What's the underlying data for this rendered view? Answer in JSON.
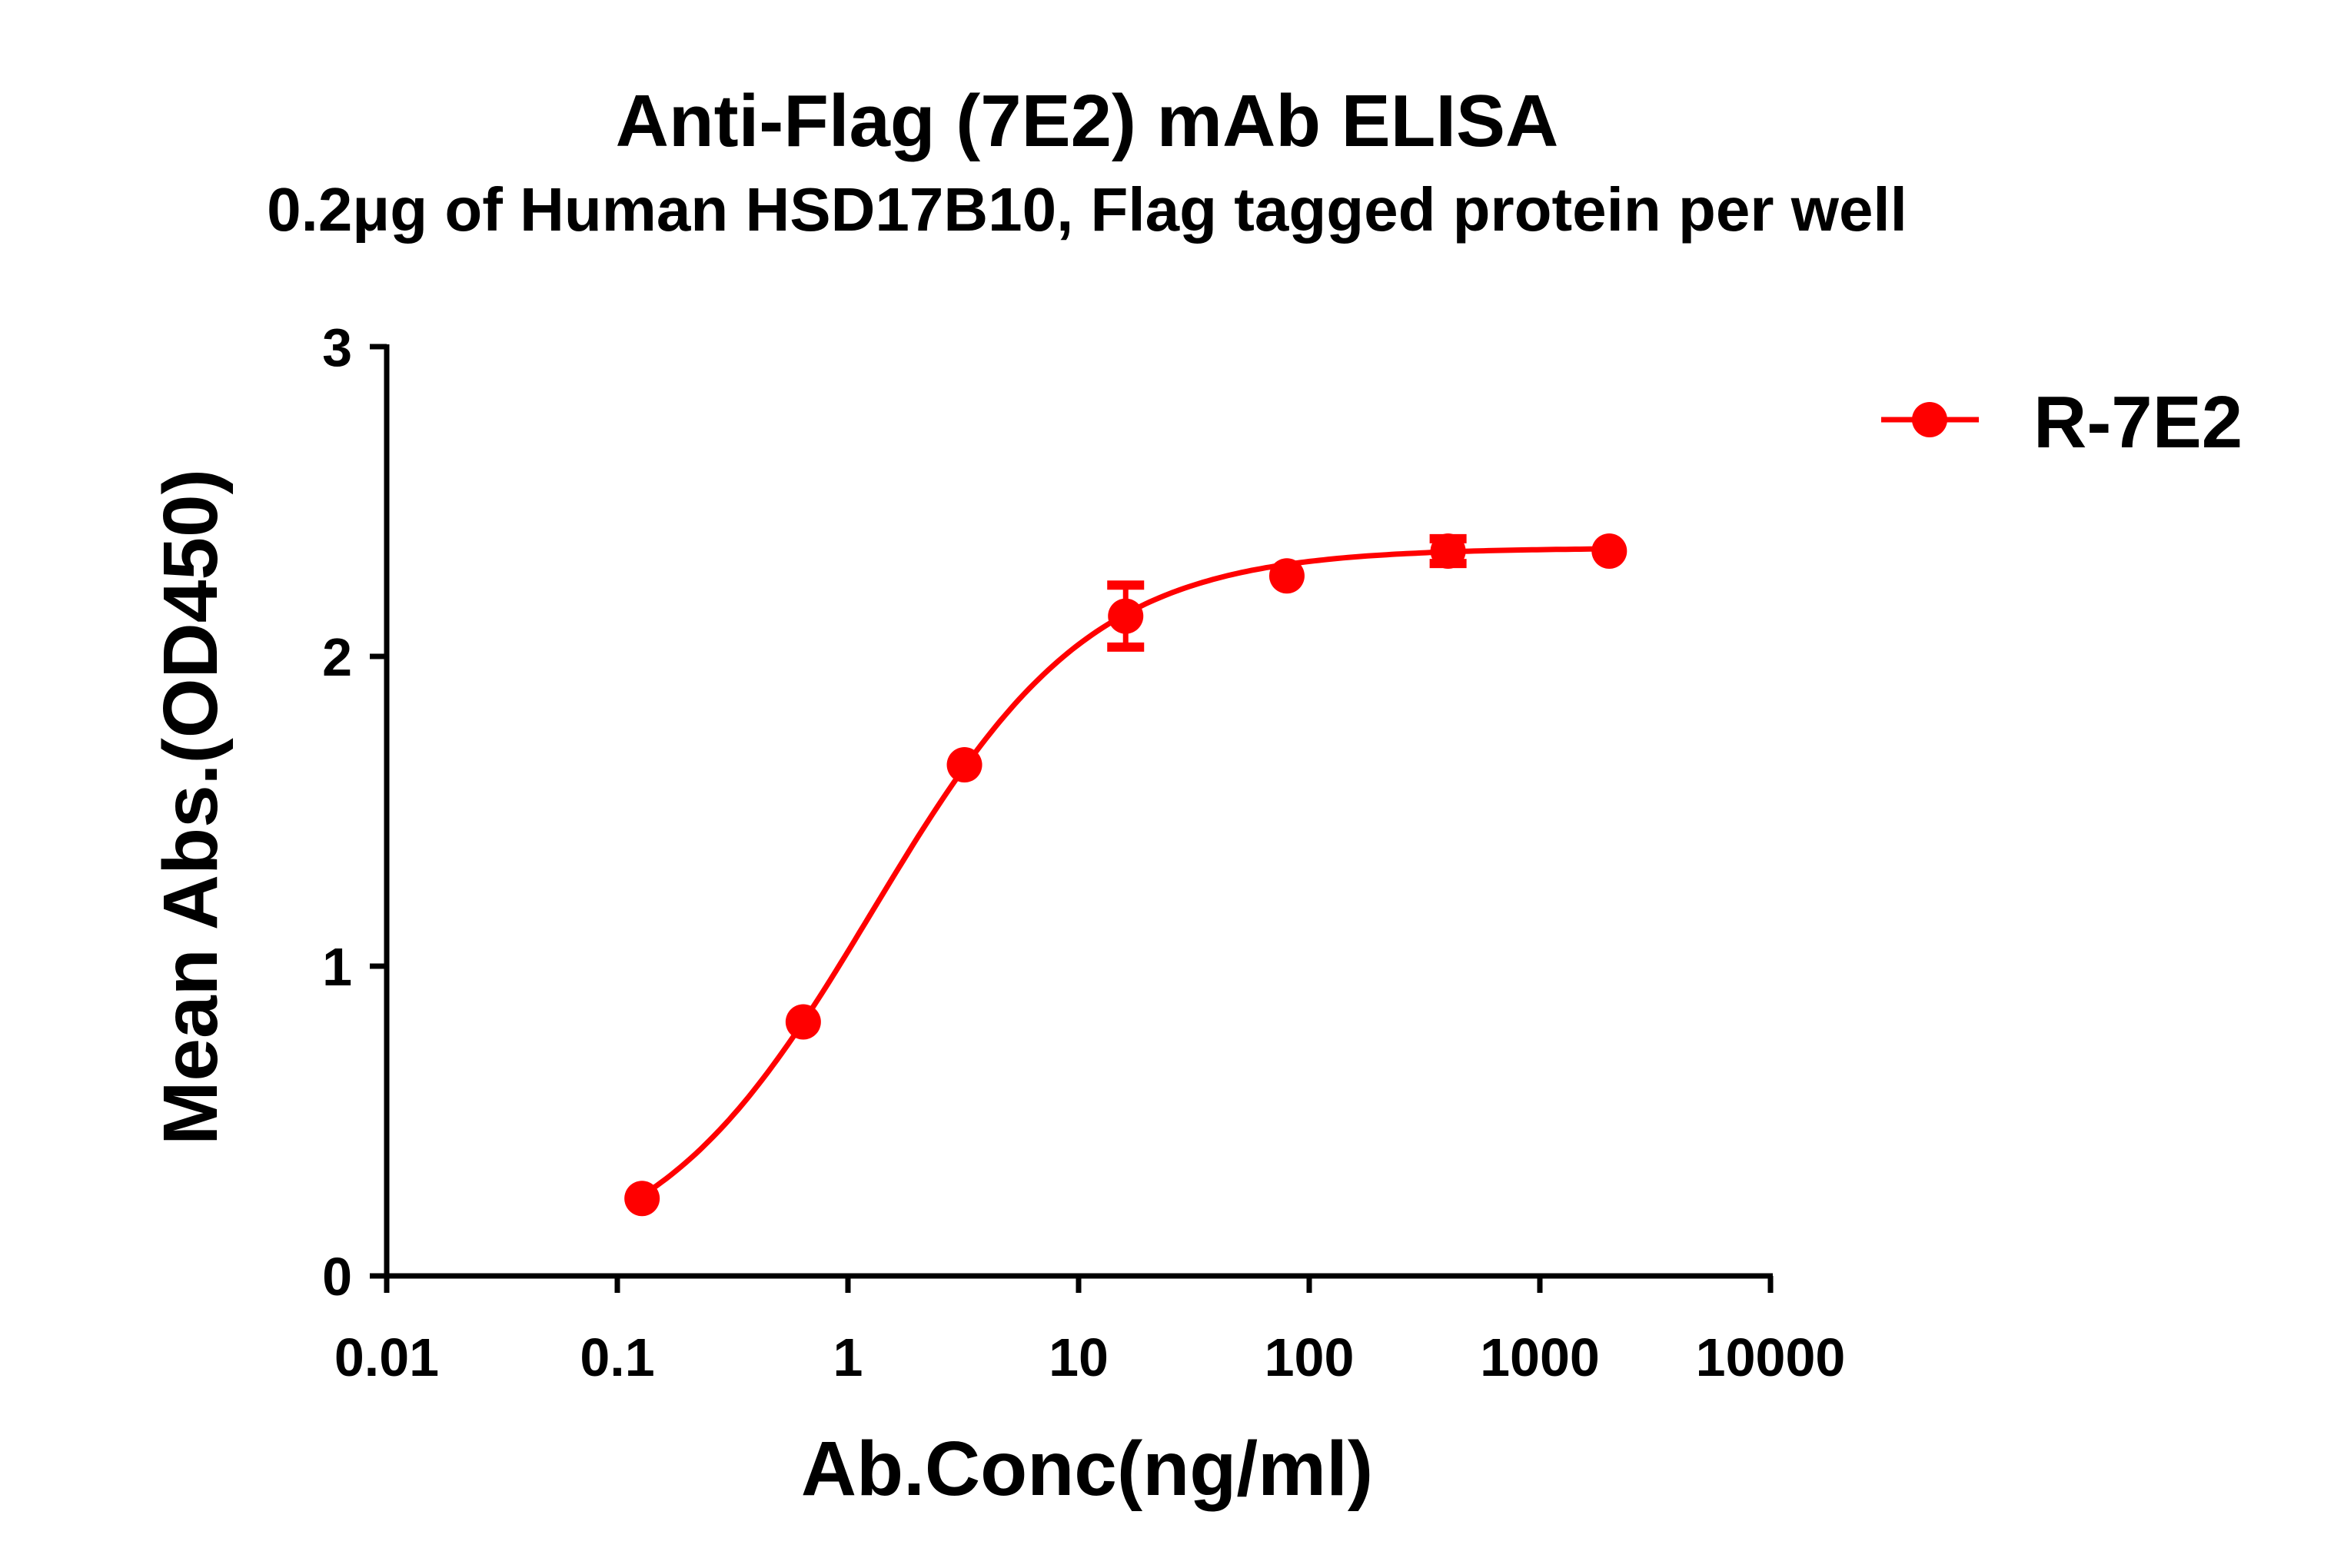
{
  "chart_data": {
    "type": "scatter",
    "title": "Anti-Flag (7E2) mAb ELISA",
    "subtitle": "0.2μg of Human HSD17B10, Flag tagged protein per well",
    "xlabel": "Ab.Conc(ng/ml)",
    "ylabel": "Mean Abs.(OD450)",
    "xscale": "log",
    "xlim": [
      0.01,
      10000
    ],
    "ylim": [
      0,
      3
    ],
    "xticks": [
      "0.01",
      "0.1",
      "1",
      "10",
      "100",
      "1000",
      "10000"
    ],
    "yticks": [
      "0",
      "1",
      "2",
      "3"
    ],
    "grid": false,
    "legend_position": "top-right",
    "fit_curve": "sigmoidal dose-response",
    "series": [
      {
        "name": "R-7E2",
        "color": "#ff0000",
        "marker": "circle",
        "x": [
          0.128,
          0.64,
          3.2,
          16,
          80,
          400,
          2000
        ],
        "y": [
          0.25,
          0.82,
          1.65,
          2.13,
          2.26,
          2.34,
          2.34
        ],
        "error": [
          0.01,
          0.02,
          0.02,
          0.1,
          0.02,
          0.04,
          0.01
        ]
      }
    ]
  }
}
